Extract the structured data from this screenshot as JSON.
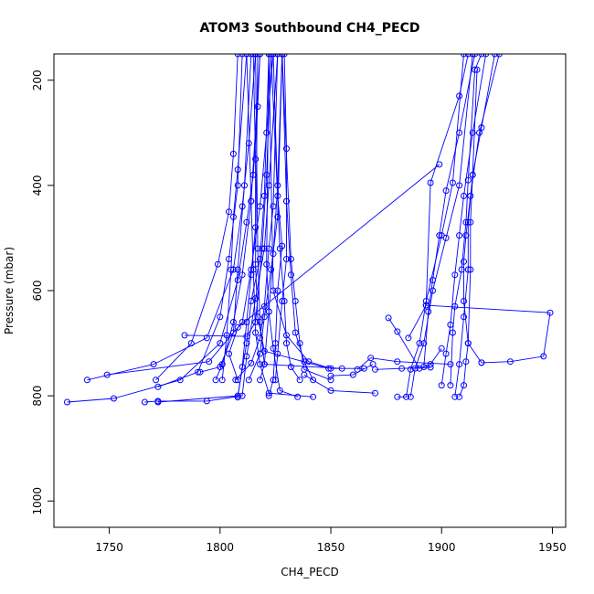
{
  "chart_data": {
    "type": "scatter",
    "title": "ATOM3 Southbound CH4_PECD",
    "xlabel": "CH4_PECD",
    "ylabel": "Pressure (mbar)",
    "xlim": [
      1725,
      1956
    ],
    "ylim": [
      1050,
      150
    ],
    "y_reversed": true,
    "x_ticks": [
      1750,
      1800,
      1850,
      1900,
      1950
    ],
    "x_tick_labels": [
      "1750",
      "1800",
      "1850",
      "1900",
      "1950"
    ],
    "y_ticks": [
      200,
      400,
      600,
      800,
      1000
    ],
    "y_tick_labels": [
      "200",
      "400",
      "600",
      "800",
      "1000"
    ],
    "grid": false,
    "series_color": "#0000ff",
    "marker": "open-circle",
    "series": [
      {
        "points": [
          [
            1731,
            812
          ],
          [
            1752,
            805
          ],
          [
            1782,
            770
          ],
          [
            1800,
            700
          ],
          [
            1808,
            580
          ],
          [
            1812,
            470
          ],
          [
            1815,
            380
          ],
          [
            1817,
            250
          ],
          [
            1818,
            150
          ]
        ]
      },
      {
        "points": [
          [
            1740,
            770
          ],
          [
            1770,
            740
          ],
          [
            1794,
            690
          ],
          [
            1806,
            560
          ],
          [
            1810,
            440
          ],
          [
            1813,
            320
          ],
          [
            1816,
            150
          ]
        ]
      },
      {
        "points": [
          [
            1749,
            760
          ],
          [
            1795,
            735
          ],
          [
            1810,
            660
          ],
          [
            1814,
            560
          ],
          [
            1818,
            440
          ],
          [
            1821,
            300
          ],
          [
            1824,
            150
          ]
        ]
      },
      {
        "points": [
          [
            1766,
            812
          ],
          [
            1772,
            810
          ],
          [
            1794,
            810
          ],
          [
            1810,
            800
          ],
          [
            1812,
            725
          ],
          [
            1816,
            615
          ],
          [
            1820,
            520
          ],
          [
            1822,
            400
          ],
          [
            1826,
            150
          ]
        ]
      },
      {
        "points": [
          [
            1771,
            770
          ],
          [
            1787,
            700
          ],
          [
            1799,
            550
          ],
          [
            1804,
            450
          ],
          [
            1806,
            340
          ],
          [
            1808,
            150
          ]
        ]
      },
      {
        "points": [
          [
            1772,
            783
          ],
          [
            1790,
            755
          ],
          [
            1800,
            650
          ],
          [
            1804,
            540
          ],
          [
            1808,
            400
          ],
          [
            1810,
            150
          ]
        ]
      },
      {
        "points": [
          [
            1772,
            812
          ],
          [
            1808,
            800
          ],
          [
            1812,
            700
          ],
          [
            1814,
            620
          ],
          [
            1818,
            540
          ],
          [
            1820,
            420
          ],
          [
            1822,
            150
          ]
        ]
      },
      {
        "points": [
          [
            1784,
            685
          ],
          [
            1812,
            687
          ],
          [
            1816,
            660
          ],
          [
            1819,
            520
          ],
          [
            1821,
            380
          ],
          [
            1823,
            150
          ]
        ]
      },
      {
        "points": [
          [
            1791,
            755
          ],
          [
            1800,
            745
          ],
          [
            1806,
            680
          ],
          [
            1808,
            560
          ],
          [
            1811,
            400
          ],
          [
            1814,
            150
          ]
        ]
      },
      {
        "points": [
          [
            1798,
            770
          ],
          [
            1801,
            740
          ],
          [
            1806,
            660
          ],
          [
            1810,
            570
          ],
          [
            1814,
            430
          ],
          [
            1818,
            150
          ]
        ]
      },
      {
        "points": [
          [
            1801,
            770
          ],
          [
            1803,
            685
          ],
          [
            1805,
            560
          ],
          [
            1806,
            460
          ],
          [
            1808,
            370
          ],
          [
            1812,
            150
          ]
        ]
      },
      {
        "points": [
          [
            1807,
            770
          ],
          [
            1814,
            738
          ],
          [
            1818,
            690
          ],
          [
            1820,
            630
          ],
          [
            1822,
            520
          ],
          [
            1824,
            440
          ],
          [
            1826,
            150
          ]
        ]
      },
      {
        "points": [
          [
            1813,
            770
          ],
          [
            1818,
            720
          ],
          [
            1820,
            650
          ],
          [
            1823,
            560
          ],
          [
            1826,
            460
          ],
          [
            1828,
            150
          ]
        ]
      },
      {
        "points": [
          [
            1818,
            770
          ],
          [
            1820,
            740
          ],
          [
            1822,
            640
          ],
          [
            1824,
            530
          ],
          [
            1826,
            400
          ],
          [
            1828,
            150
          ]
        ]
      },
      {
        "points": [
          [
            1808,
            803
          ],
          [
            1810,
            745
          ],
          [
            1812,
            660
          ],
          [
            1814,
            570
          ],
          [
            1816,
            480
          ],
          [
            1816,
            350
          ],
          [
            1815,
            150
          ]
        ]
      },
      {
        "points": [
          [
            1825,
            770
          ],
          [
            1826,
            720
          ],
          [
            1828,
            620
          ],
          [
            1830,
            540
          ],
          [
            1830,
            430
          ],
          [
            1830,
            330
          ],
          [
            1829,
            150
          ]
        ]
      },
      {
        "points": [
          [
            1822,
            800
          ],
          [
            1824,
            770
          ],
          [
            1825,
            700
          ],
          [
            1826,
            600
          ],
          [
            1828,
            515
          ],
          [
            1826,
            420
          ],
          [
            1824,
            150
          ]
        ]
      },
      {
        "points": [
          [
            1842,
            770
          ],
          [
            1838,
            735
          ],
          [
            1834,
            680
          ],
          [
            1832,
            570
          ],
          [
            1830,
            430
          ],
          [
            1828,
            150
          ]
        ]
      },
      {
        "points": [
          [
            1836,
            770
          ],
          [
            1832,
            745
          ],
          [
            1830,
            700
          ],
          [
            1829,
            620
          ],
          [
            1827,
            520
          ],
          [
            1823,
            150
          ]
        ]
      },
      {
        "points": [
          [
            1842,
            802
          ],
          [
            1822,
            795
          ],
          [
            1818,
            740
          ],
          [
            1816,
            680
          ],
          [
            1815,
            560
          ],
          [
            1814,
            430
          ],
          [
            1812,
            150
          ]
        ]
      },
      {
        "points": [
          [
            1850,
            770
          ],
          [
            1838,
            750
          ],
          [
            1836,
            700
          ],
          [
            1834,
            620
          ],
          [
            1832,
            540
          ],
          [
            1828,
            150
          ]
        ]
      },
      {
        "points": [
          [
            1849,
            748
          ],
          [
            1820,
            715
          ],
          [
            1817,
            650
          ],
          [
            1816,
            550
          ],
          [
            1817,
            150
          ]
        ]
      },
      {
        "points": [
          [
            1855,
            748
          ],
          [
            1820,
            740
          ],
          [
            1818,
            660
          ],
          [
            1817,
            520
          ],
          [
            1816,
            150
          ]
        ]
      },
      {
        "points": [
          [
            1835,
            802
          ],
          [
            1827,
            790
          ],
          [
            1824,
            710
          ],
          [
            1822,
            640
          ],
          [
            1821,
            550
          ],
          [
            1822,
            150
          ]
        ]
      },
      {
        "points": [
          [
            1865,
            748
          ],
          [
            1850,
            748
          ],
          [
            1840,
            735
          ],
          [
            1830,
            685
          ],
          [
            1824,
            600
          ],
          [
            1822,
            150
          ]
        ]
      },
      {
        "points": [
          [
            1899,
            360
          ],
          [
            1808,
            670
          ],
          [
            1804,
            720
          ],
          [
            1808,
            770
          ]
        ]
      },
      {
        "points": [
          [
            1870,
            795
          ],
          [
            1850,
            790
          ],
          [
            1838,
            760
          ]
        ]
      },
      {
        "points": [
          [
            1904,
            740
          ],
          [
            1880,
            735
          ],
          [
            1868,
            728
          ],
          [
            1862,
            750
          ]
        ]
      },
      {
        "points": [
          [
            1876,
            652
          ],
          [
            1880,
            678
          ],
          [
            1890,
            748
          ],
          [
            1895,
            740
          ],
          [
            1900,
            710
          ]
        ]
      },
      {
        "points": [
          [
            1880,
            802
          ],
          [
            1884,
            802
          ],
          [
            1886,
            750
          ],
          [
            1890,
            700
          ],
          [
            1893,
            620
          ],
          [
            1900,
            495
          ],
          [
            1905,
            395
          ],
          [
            1910,
            150
          ]
        ]
      },
      {
        "points": [
          [
            1886,
            802
          ],
          [
            1888,
            748
          ],
          [
            1892,
            700
          ],
          [
            1896,
            600
          ],
          [
            1902,
            500
          ],
          [
            1908,
            400
          ],
          [
            1914,
            150
          ]
        ]
      },
      {
        "points": [
          [
            1892,
            745
          ],
          [
            1894,
            640
          ],
          [
            1896,
            580
          ],
          [
            1899,
            495
          ],
          [
            1902,
            410
          ],
          [
            1908,
            300
          ],
          [
            1915,
            150
          ]
        ]
      },
      {
        "points": [
          [
            1885,
            690
          ],
          [
            1893,
            628
          ],
          [
            1895,
            395
          ],
          [
            1908,
            230
          ],
          [
            1912,
            150
          ]
        ]
      },
      {
        "points": [
          [
            1900,
            780
          ],
          [
            1902,
            720
          ],
          [
            1904,
            665
          ],
          [
            1906,
            570
          ],
          [
            1908,
            495
          ],
          [
            1910,
            420
          ],
          [
            1914,
            300
          ],
          [
            1920,
            150
          ]
        ]
      },
      {
        "points": [
          [
            1904,
            780
          ],
          [
            1905,
            680
          ],
          [
            1906,
            630
          ],
          [
            1909,
            560
          ],
          [
            1911,
            470
          ],
          [
            1912,
            390
          ],
          [
            1915,
            180
          ],
          [
            1918,
            150
          ]
        ]
      },
      {
        "points": [
          [
            1908,
            802
          ],
          [
            1910,
            780
          ],
          [
            1911,
            735
          ],
          [
            1912,
            700
          ],
          [
            1913,
            560
          ],
          [
            1913,
            470
          ],
          [
            1914,
            380
          ],
          [
            1916,
            180
          ]
        ]
      },
      {
        "points": [
          [
            1906,
            802
          ],
          [
            1908,
            740
          ],
          [
            1910,
            650
          ],
          [
            1912,
            560
          ],
          [
            1912,
            470
          ],
          [
            1914,
            380
          ],
          [
            1918,
            290
          ],
          [
            1924,
            150
          ]
        ]
      },
      {
        "points": [
          [
            1918,
            737
          ],
          [
            1912,
            700
          ],
          [
            1910,
            620
          ],
          [
            1910,
            545
          ],
          [
            1911,
            495
          ],
          [
            1913,
            420
          ],
          [
            1917,
            300
          ],
          [
            1926,
            150
          ]
        ]
      },
      {
        "points": [
          [
            1893,
            628
          ],
          [
            1949,
            642
          ],
          [
            1946,
            725
          ],
          [
            1931,
            735
          ],
          [
            1918,
            737
          ]
        ]
      },
      {
        "points": [
          [
            1869,
            740
          ],
          [
            1860,
            760
          ],
          [
            1850,
            762
          ]
        ]
      },
      {
        "points": [
          [
            1870,
            750
          ],
          [
            1882,
            748
          ],
          [
            1895,
            746
          ]
        ]
      }
    ]
  }
}
